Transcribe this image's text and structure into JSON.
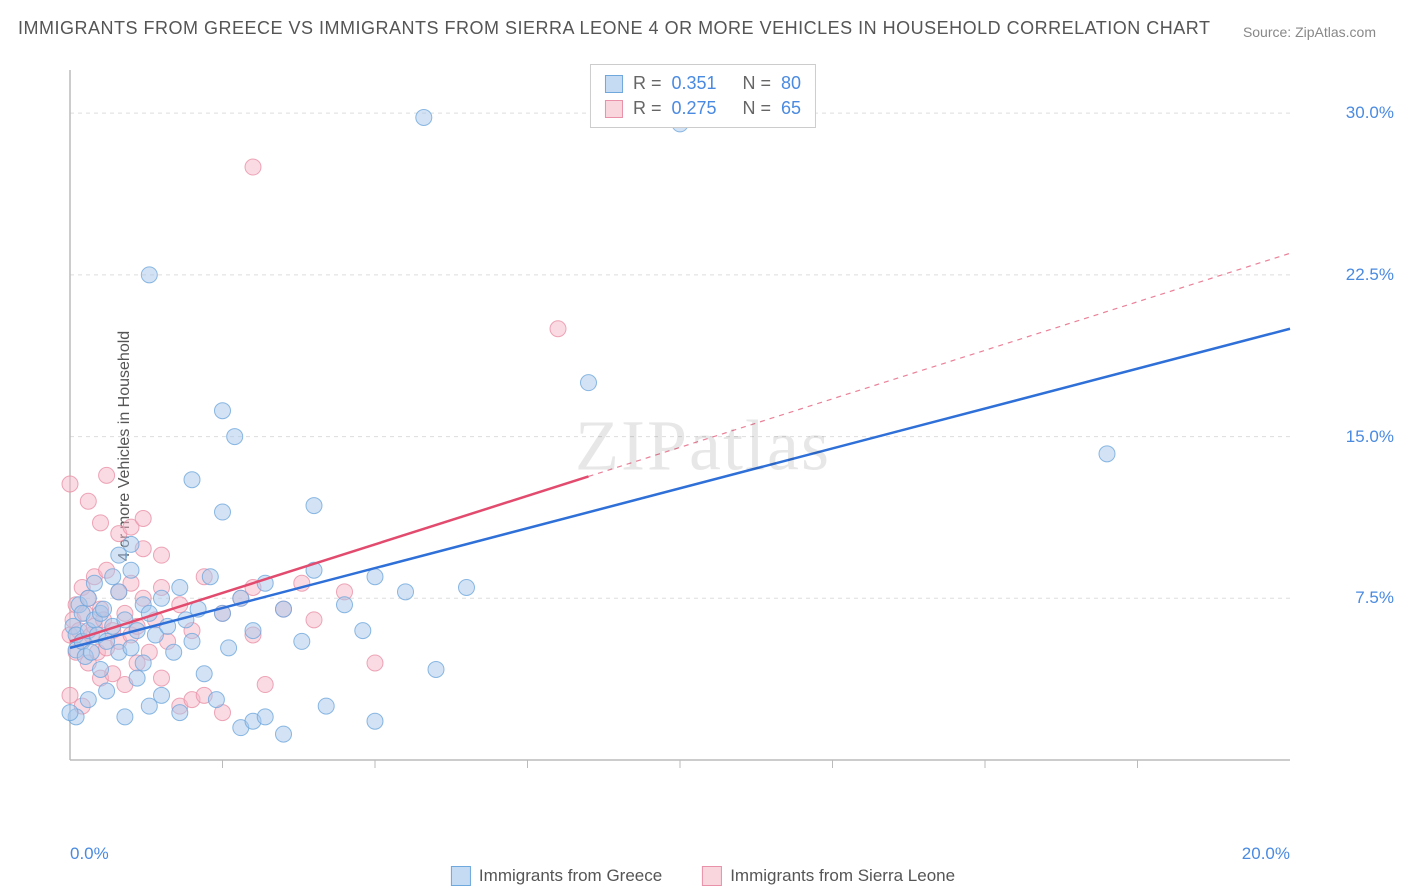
{
  "title": "IMMIGRANTS FROM GREECE VS IMMIGRANTS FROM SIERRA LEONE 4 OR MORE VEHICLES IN HOUSEHOLD CORRELATION CHART",
  "source_prefix": "Source: ",
  "source_name": "ZipAtlas.com",
  "ylabel": "4 or more Vehicles in Household",
  "watermark": "ZIPatlas",
  "chart": {
    "type": "scatter-with-regression",
    "xlim": [
      0,
      20
    ],
    "ylim": [
      0,
      32
    ],
    "x_ticks": [
      0,
      20
    ],
    "x_tick_labels": [
      "0.0%",
      "20.0%"
    ],
    "x_minor_ticks": [
      2.5,
      5,
      7.5,
      10,
      12.5,
      15,
      17.5
    ],
    "y_ticks": [
      7.5,
      15.0,
      22.5,
      30.0
    ],
    "y_tick_labels": [
      "7.5%",
      "15.0%",
      "22.5%",
      "30.0%"
    ],
    "grid_color": "#dddddd",
    "grid_dash": "4 4",
    "axis_color": "#bbbbbb",
    "background_color": "#ffffff",
    "point_radius": 8,
    "point_opacity": 0.5,
    "line_width": 2.5,
    "series": [
      {
        "name": "Immigrants from Greece",
        "color_fill": "#a8c8ec",
        "color_stroke": "#6fa8dc",
        "line_color": "#2e6fd8",
        "swatch_fill": "#c5dbf3",
        "swatch_border": "#6fa8dc",
        "R": "0.351",
        "N": "80",
        "regression": {
          "x1": 0,
          "y1": 5.2,
          "x2": 20,
          "y2": 20.0,
          "dashed_after_x": null
        },
        "points": [
          [
            0.05,
            6.2
          ],
          [
            0.1,
            5.8
          ],
          [
            0.1,
            5.1
          ],
          [
            0.15,
            7.2
          ],
          [
            0.2,
            5.5
          ],
          [
            0.2,
            6.8
          ],
          [
            0.25,
            4.8
          ],
          [
            0.3,
            6.0
          ],
          [
            0.3,
            7.5
          ],
          [
            0.35,
            5.0
          ],
          [
            0.4,
            6.5
          ],
          [
            0.4,
            8.2
          ],
          [
            0.45,
            5.8
          ],
          [
            0.5,
            6.8
          ],
          [
            0.5,
            4.2
          ],
          [
            0.55,
            7.0
          ],
          [
            0.6,
            5.5
          ],
          [
            0.6,
            3.2
          ],
          [
            0.7,
            6.2
          ],
          [
            0.7,
            8.5
          ],
          [
            0.8,
            5.0
          ],
          [
            0.8,
            7.8
          ],
          [
            0.9,
            6.5
          ],
          [
            0.9,
            2.0
          ],
          [
            1.0,
            5.2
          ],
          [
            1.0,
            8.8
          ],
          [
            1.1,
            6.0
          ],
          [
            1.1,
            3.8
          ],
          [
            1.2,
            7.2
          ],
          [
            1.2,
            4.5
          ],
          [
            1.3,
            6.8
          ],
          [
            1.3,
            2.5
          ],
          [
            1.4,
            5.8
          ],
          [
            1.5,
            7.5
          ],
          [
            1.5,
            3.0
          ],
          [
            1.6,
            6.2
          ],
          [
            1.7,
            5.0
          ],
          [
            1.8,
            8.0
          ],
          [
            1.8,
            2.2
          ],
          [
            1.9,
            6.5
          ],
          [
            2.0,
            5.5
          ],
          [
            2.0,
            13.0
          ],
          [
            2.1,
            7.0
          ],
          [
            2.2,
            4.0
          ],
          [
            2.3,
            8.5
          ],
          [
            2.4,
            2.8
          ],
          [
            2.5,
            6.8
          ],
          [
            2.5,
            11.5
          ],
          [
            2.6,
            5.2
          ],
          [
            2.8,
            7.5
          ],
          [
            2.8,
            1.5
          ],
          [
            3.0,
            6.0
          ],
          [
            3.0,
            1.8
          ],
          [
            3.2,
            8.2
          ],
          [
            3.2,
            2.0
          ],
          [
            3.5,
            7.0
          ],
          [
            3.5,
            1.2
          ],
          [
            3.8,
            5.5
          ],
          [
            4.0,
            8.8
          ],
          [
            4.0,
            11.8
          ],
          [
            4.2,
            2.5
          ],
          [
            4.5,
            7.2
          ],
          [
            4.8,
            6.0
          ],
          [
            5.0,
            8.5
          ],
          [
            5.0,
            1.8
          ],
          [
            5.5,
            7.8
          ],
          [
            6.0,
            4.2
          ],
          [
            6.5,
            8.0
          ],
          [
            1.3,
            22.5
          ],
          [
            5.8,
            29.8
          ],
          [
            2.5,
            16.2
          ],
          [
            2.7,
            15.0
          ],
          [
            8.5,
            17.5
          ],
          [
            10.0,
            29.5
          ],
          [
            17.0,
            14.2
          ],
          [
            0.1,
            2.0
          ],
          [
            0.3,
            2.8
          ],
          [
            0.0,
            2.2
          ],
          [
            0.8,
            9.5
          ],
          [
            1.0,
            10.0
          ]
        ]
      },
      {
        "name": "Immigrants from Sierra Leone",
        "color_fill": "#f5b8c8",
        "color_stroke": "#e891a8",
        "line_color": "#e24b6e",
        "swatch_fill": "#f9d5de",
        "swatch_border": "#e891a8",
        "R": "0.275",
        "N": "65",
        "regression": {
          "x1": 0,
          "y1": 5.5,
          "x2": 20,
          "y2": 23.5,
          "dashed_after_x": 8.5
        },
        "points": [
          [
            0.0,
            5.8
          ],
          [
            0.05,
            6.5
          ],
          [
            0.1,
            5.0
          ],
          [
            0.1,
            7.2
          ],
          [
            0.15,
            6.0
          ],
          [
            0.2,
            8.0
          ],
          [
            0.2,
            5.5
          ],
          [
            0.25,
            6.8
          ],
          [
            0.3,
            4.5
          ],
          [
            0.3,
            7.5
          ],
          [
            0.35,
            5.8
          ],
          [
            0.4,
            6.2
          ],
          [
            0.4,
            8.5
          ],
          [
            0.45,
            5.0
          ],
          [
            0.5,
            7.0
          ],
          [
            0.5,
            3.8
          ],
          [
            0.55,
            6.5
          ],
          [
            0.6,
            5.2
          ],
          [
            0.6,
            8.8
          ],
          [
            0.7,
            6.0
          ],
          [
            0.7,
            4.0
          ],
          [
            0.8,
            7.8
          ],
          [
            0.8,
            5.5
          ],
          [
            0.9,
            6.8
          ],
          [
            0.9,
            3.5
          ],
          [
            1.0,
            5.8
          ],
          [
            1.0,
            8.2
          ],
          [
            1.1,
            6.2
          ],
          [
            1.1,
            4.5
          ],
          [
            1.2,
            7.5
          ],
          [
            1.3,
            5.0
          ],
          [
            1.4,
            6.5
          ],
          [
            1.5,
            8.0
          ],
          [
            1.5,
            3.8
          ],
          [
            1.6,
            5.5
          ],
          [
            1.8,
            7.2
          ],
          [
            1.8,
            2.5
          ],
          [
            2.0,
            6.0
          ],
          [
            2.0,
            2.8
          ],
          [
            2.2,
            8.5
          ],
          [
            2.2,
            3.0
          ],
          [
            2.5,
            6.8
          ],
          [
            2.5,
            2.2
          ],
          [
            2.8,
            7.5
          ],
          [
            3.0,
            5.8
          ],
          [
            3.0,
            8.0
          ],
          [
            3.2,
            3.5
          ],
          [
            3.5,
            7.0
          ],
          [
            3.8,
            8.2
          ],
          [
            4.0,
            6.5
          ],
          [
            4.5,
            7.8
          ],
          [
            5.0,
            4.5
          ],
          [
            0.0,
            12.8
          ],
          [
            0.3,
            12.0
          ],
          [
            0.5,
            11.0
          ],
          [
            0.6,
            13.2
          ],
          [
            0.8,
            10.5
          ],
          [
            1.0,
            10.8
          ],
          [
            1.2,
            9.8
          ],
          [
            1.5,
            9.5
          ],
          [
            1.2,
            11.2
          ],
          [
            3.0,
            27.5
          ],
          [
            8.0,
            20.0
          ],
          [
            0.0,
            3.0
          ],
          [
            0.2,
            2.5
          ]
        ]
      }
    ],
    "stats_labels": {
      "R_label": "R",
      "N_label": "N",
      "eq": "="
    },
    "legend_bottom": [
      {
        "label": "Immigrants from Greece",
        "series_index": 0
      },
      {
        "label": "Immigrants from Sierra Leone",
        "series_index": 1
      }
    ]
  }
}
